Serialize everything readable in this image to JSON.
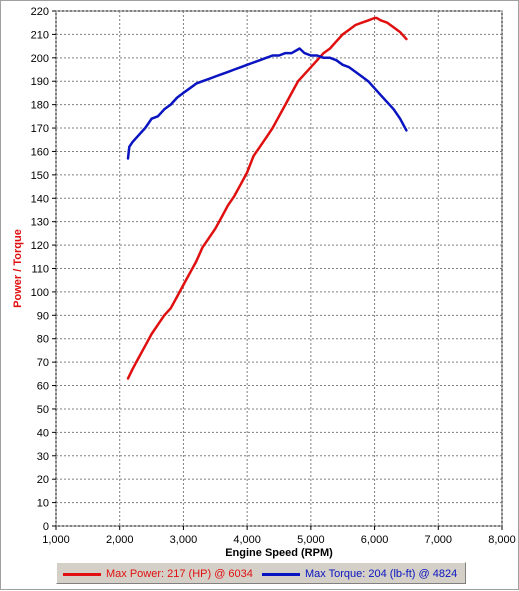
{
  "colors": {
    "power": "#e01010",
    "torque": "#0a14c0",
    "ylabel": "#e01010",
    "xlabel": "#000000"
  },
  "legend": {
    "power_label": "Max Power: 217 (HP) @ 6034",
    "torque_label": "Max Torque: 204 (lb-ft) @ 4824"
  },
  "chart_data": {
    "type": "line",
    "title": "",
    "xlabel": "Engine Speed (RPM)",
    "ylabel": "Power / Torque",
    "xlim": [
      1000,
      8000
    ],
    "ylim": [
      0,
      220
    ],
    "grid": true,
    "legend_position": "bottom",
    "xticks": [
      1000,
      2000,
      3000,
      4000,
      5000,
      6000,
      7000,
      8000
    ],
    "xtick_labels": [
      "1,000",
      "2,000",
      "3,000",
      "4,000",
      "5,000",
      "6,000",
      "7,000",
      "8,000"
    ],
    "yticks": [
      0,
      10,
      20,
      30,
      40,
      50,
      60,
      70,
      80,
      90,
      100,
      110,
      120,
      130,
      140,
      150,
      160,
      170,
      180,
      190,
      200,
      210,
      220
    ],
    "series": [
      {
        "name": "Max Power: 217 (HP) @ 6034",
        "key": "power",
        "x": [
          2130,
          2200,
          2300,
          2400,
          2500,
          2600,
          2700,
          2800,
          2900,
          3000,
          3100,
          3200,
          3300,
          3400,
          3500,
          3600,
          3700,
          3800,
          3900,
          4000,
          4100,
          4200,
          4300,
          4400,
          4500,
          4600,
          4700,
          4800,
          4900,
          5000,
          5100,
          5200,
          5300,
          5400,
          5500,
          5600,
          5700,
          5800,
          5900,
          6000,
          6034,
          6100,
          6200,
          6300,
          6400,
          6500
        ],
        "y": [
          63,
          67,
          72,
          77,
          82,
          86,
          90,
          93,
          98,
          103,
          108,
          113,
          119,
          123,
          127,
          132,
          137,
          141,
          146,
          151,
          158,
          162,
          166,
          170,
          175,
          180,
          185,
          190,
          193,
          196,
          199,
          202,
          204,
          207,
          210,
          212,
          214,
          215,
          216,
          217,
          217,
          216,
          215,
          213,
          211,
          208
        ]
      },
      {
        "name": "Max Torque: 204 (lb-ft) @ 4824",
        "key": "torque",
        "x": [
          2130,
          2150,
          2200,
          2300,
          2400,
          2450,
          2500,
          2600,
          2700,
          2800,
          2900,
          3000,
          3100,
          3200,
          3300,
          3400,
          3500,
          3600,
          3700,
          3800,
          3900,
          4000,
          4100,
          4200,
          4300,
          4400,
          4500,
          4600,
          4700,
          4824,
          4900,
          5000,
          5100,
          5200,
          5300,
          5400,
          5500,
          5600,
          5700,
          5800,
          5900,
          6000,
          6100,
          6200,
          6300,
          6400,
          6500
        ],
        "y": [
          157,
          162,
          164,
          167,
          170,
          172,
          174,
          175,
          178,
          180,
          183,
          185,
          187,
          189,
          190,
          191,
          192,
          193,
          194,
          195,
          196,
          197,
          198,
          199,
          200,
          201,
          201,
          202,
          202,
          204,
          202,
          201,
          201,
          200,
          200,
          199,
          197,
          196,
          194,
          192,
          190,
          187,
          184,
          181,
          178,
          174,
          169
        ]
      }
    ]
  }
}
